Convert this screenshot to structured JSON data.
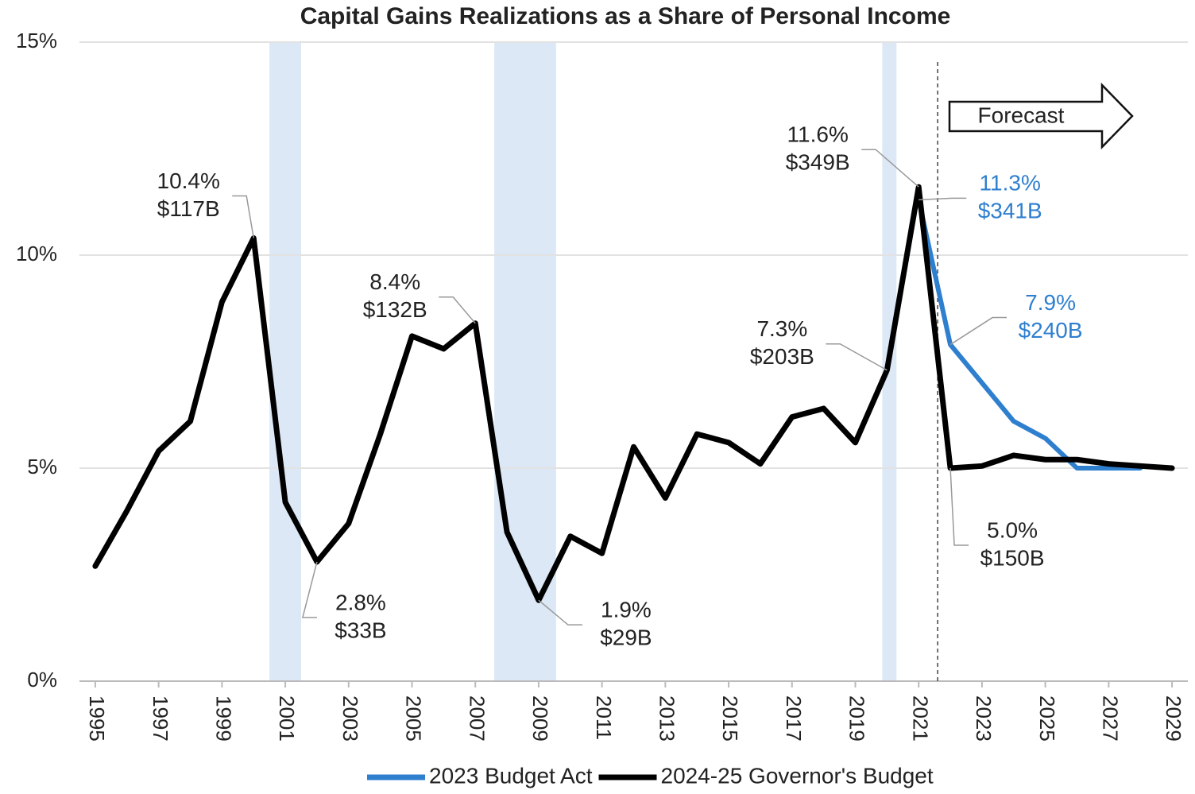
{
  "chart_data": {
    "type": "line",
    "title": "Capital Gains Realizations as a Share of Personal Income",
    "x": [
      1995,
      1996,
      1997,
      1998,
      1999,
      2000,
      2001,
      2002,
      2003,
      2004,
      2005,
      2006,
      2007,
      2008,
      2009,
      2010,
      2011,
      2012,
      2013,
      2014,
      2015,
      2016,
      2017,
      2018,
      2019,
      2020,
      2021,
      2022,
      2023,
      2024,
      2025,
      2026,
      2027,
      2028,
      2029
    ],
    "series": [
      {
        "name": "2023 Budget Act",
        "color": "#2f7fcf",
        "values": [
          null,
          null,
          null,
          null,
          null,
          null,
          null,
          null,
          null,
          null,
          null,
          null,
          null,
          null,
          null,
          null,
          null,
          null,
          null,
          null,
          null,
          null,
          null,
          null,
          null,
          null,
          11.3,
          7.9,
          7.0,
          6.1,
          5.7,
          5.0,
          5.0,
          5.0,
          null
        ]
      },
      {
        "name": "2024-25 Governor's Budget",
        "color": "#000000",
        "values": [
          2.7,
          4.0,
          5.4,
          6.1,
          8.9,
          10.4,
          4.2,
          2.8,
          3.7,
          5.8,
          8.1,
          7.8,
          8.4,
          3.5,
          1.9,
          3.4,
          3.0,
          5.5,
          4.3,
          5.8,
          5.6,
          5.1,
          6.2,
          6.4,
          5.6,
          7.3,
          11.6,
          5.0,
          5.05,
          5.3,
          5.2,
          5.2,
          5.1,
          5.05,
          5.0
        ]
      }
    ],
    "xlim": [
      1994.5,
      2029.5
    ],
    "xticks": [
      1995,
      1997,
      1999,
      2001,
      2003,
      2005,
      2007,
      2009,
      2011,
      2013,
      2015,
      2017,
      2019,
      2021,
      2023,
      2025,
      2027,
      2029
    ],
    "ylim": [
      0,
      15
    ],
    "yticks": [
      {
        "value": 0,
        "label": "0%"
      },
      {
        "value": 5,
        "label": "5%"
      },
      {
        "value": 10,
        "label": "10%"
      },
      {
        "value": 15,
        "label": "15%"
      }
    ],
    "grid": true,
    "legend": "bottom",
    "shaded_spans": [
      [
        2000.5,
        2001.5
      ],
      [
        2007.6,
        2009.55
      ],
      [
        2019.85,
        2020.3
      ]
    ],
    "shade_color": "#dce8f6",
    "forecast_start": 2021.6,
    "forecast_label": "Forecast",
    "annotations": [
      {
        "x": 2000,
        "y": 10.4,
        "text": [
          "10.4%",
          "$117B"
        ],
        "color": "#222222"
      },
      {
        "x": 2007,
        "y": 8.4,
        "text": [
          "8.4%",
          "$132B"
        ],
        "color": "#222222"
      },
      {
        "x": 2002,
        "y": 2.8,
        "text": [
          "2.8%",
          "$33B"
        ],
        "color": "#222222"
      },
      {
        "x": 2009,
        "y": 1.9,
        "text": [
          "1.9%",
          "$29B"
        ],
        "color": "#222222"
      },
      {
        "x": 2020,
        "y": 7.3,
        "text": [
          "7.3%",
          "$203B"
        ],
        "color": "#222222"
      },
      {
        "x": 2021,
        "y": 11.6,
        "text": [
          "11.6%",
          "$349B"
        ],
        "color": "#222222"
      },
      {
        "x": 2021,
        "y": 11.3,
        "text": [
          "11.3%",
          "$341B"
        ],
        "color": "#2f7fcf"
      },
      {
        "x": 2022,
        "y": 7.9,
        "text": [
          "7.9%",
          "$240B"
        ],
        "color": "#2f7fcf"
      },
      {
        "x": 2022,
        "y": 5.0,
        "text": [
          "5.0%",
          "$150B"
        ],
        "color": "#222222"
      }
    ]
  }
}
